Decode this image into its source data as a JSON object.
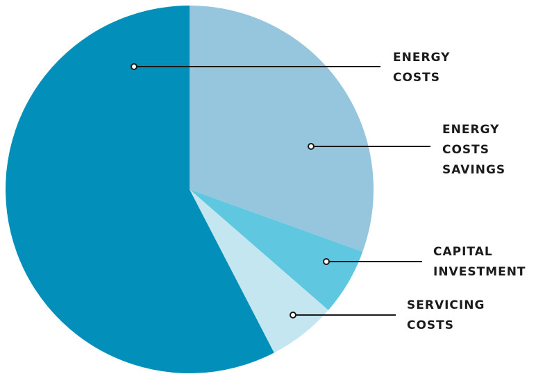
{
  "chart_data": {
    "type": "pie",
    "title": "",
    "start_angle_deg": 0,
    "direction": "clockwise",
    "slices": [
      {
        "label": [
          "ENERGY",
          "COSTS",
          "SAVINGS"
        ],
        "value": 30.5,
        "color": "#96c6dd"
      },
      {
        "label": [
          "CAPITAL",
          "INVESTMENT"
        ],
        "value": 5.9,
        "color": "#5fc8e0"
      },
      {
        "label": [
          "SERVICING",
          "COSTS"
        ],
        "value": 6.0,
        "color": "#c3e6f0"
      },
      {
        "label": [
          "ENERGY",
          "COSTS"
        ],
        "value": 57.6,
        "color": "#0290bb"
      }
    ]
  }
}
